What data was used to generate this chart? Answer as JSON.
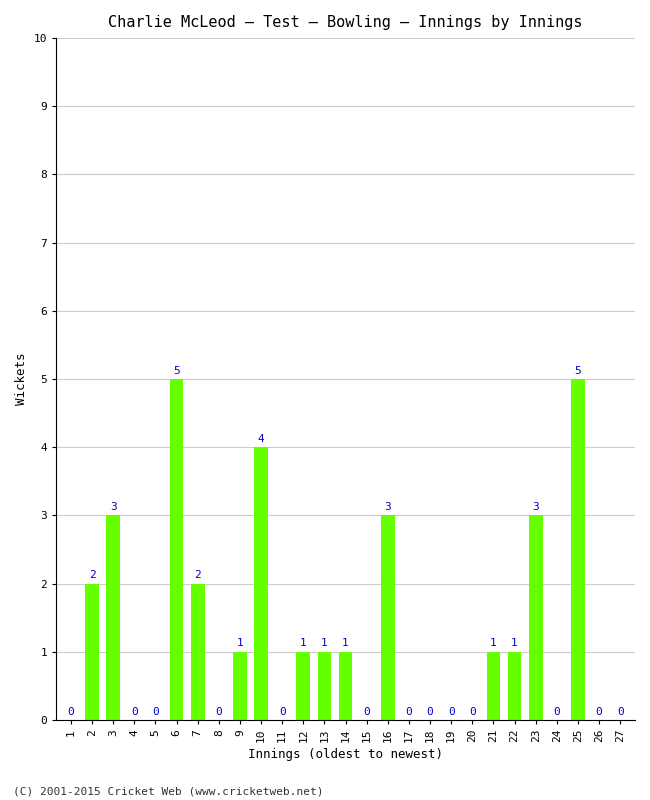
{
  "title": "Charlie McLeod – Test – Bowling – Innings by Innings",
  "xlabel": "Innings (oldest to newest)",
  "ylabel": "Wickets",
  "innings": [
    1,
    2,
    3,
    4,
    5,
    6,
    7,
    8,
    9,
    10,
    11,
    12,
    13,
    14,
    15,
    16,
    17,
    18,
    19,
    20,
    21,
    22,
    23,
    24,
    25,
    26,
    27
  ],
  "wickets": [
    0,
    2,
    3,
    0,
    0,
    5,
    2,
    0,
    1,
    4,
    0,
    1,
    1,
    1,
    0,
    3,
    0,
    0,
    0,
    0,
    1,
    1,
    3,
    0,
    5,
    0,
    0
  ],
  "bar_color": "#66ff00",
  "label_color": "#0000cc",
  "ylim": [
    0,
    10
  ],
  "yticks": [
    0,
    1,
    2,
    3,
    4,
    5,
    6,
    7,
    8,
    9,
    10
  ],
  "grid_color": "#cccccc",
  "bg_color": "#ffffff",
  "title_fontsize": 11,
  "label_fontsize": 9,
  "tick_fontsize": 8,
  "annotation_fontsize": 8,
  "footer": "(C) 2001-2015 Cricket Web (www.cricketweb.net)",
  "footer_fontsize": 8
}
